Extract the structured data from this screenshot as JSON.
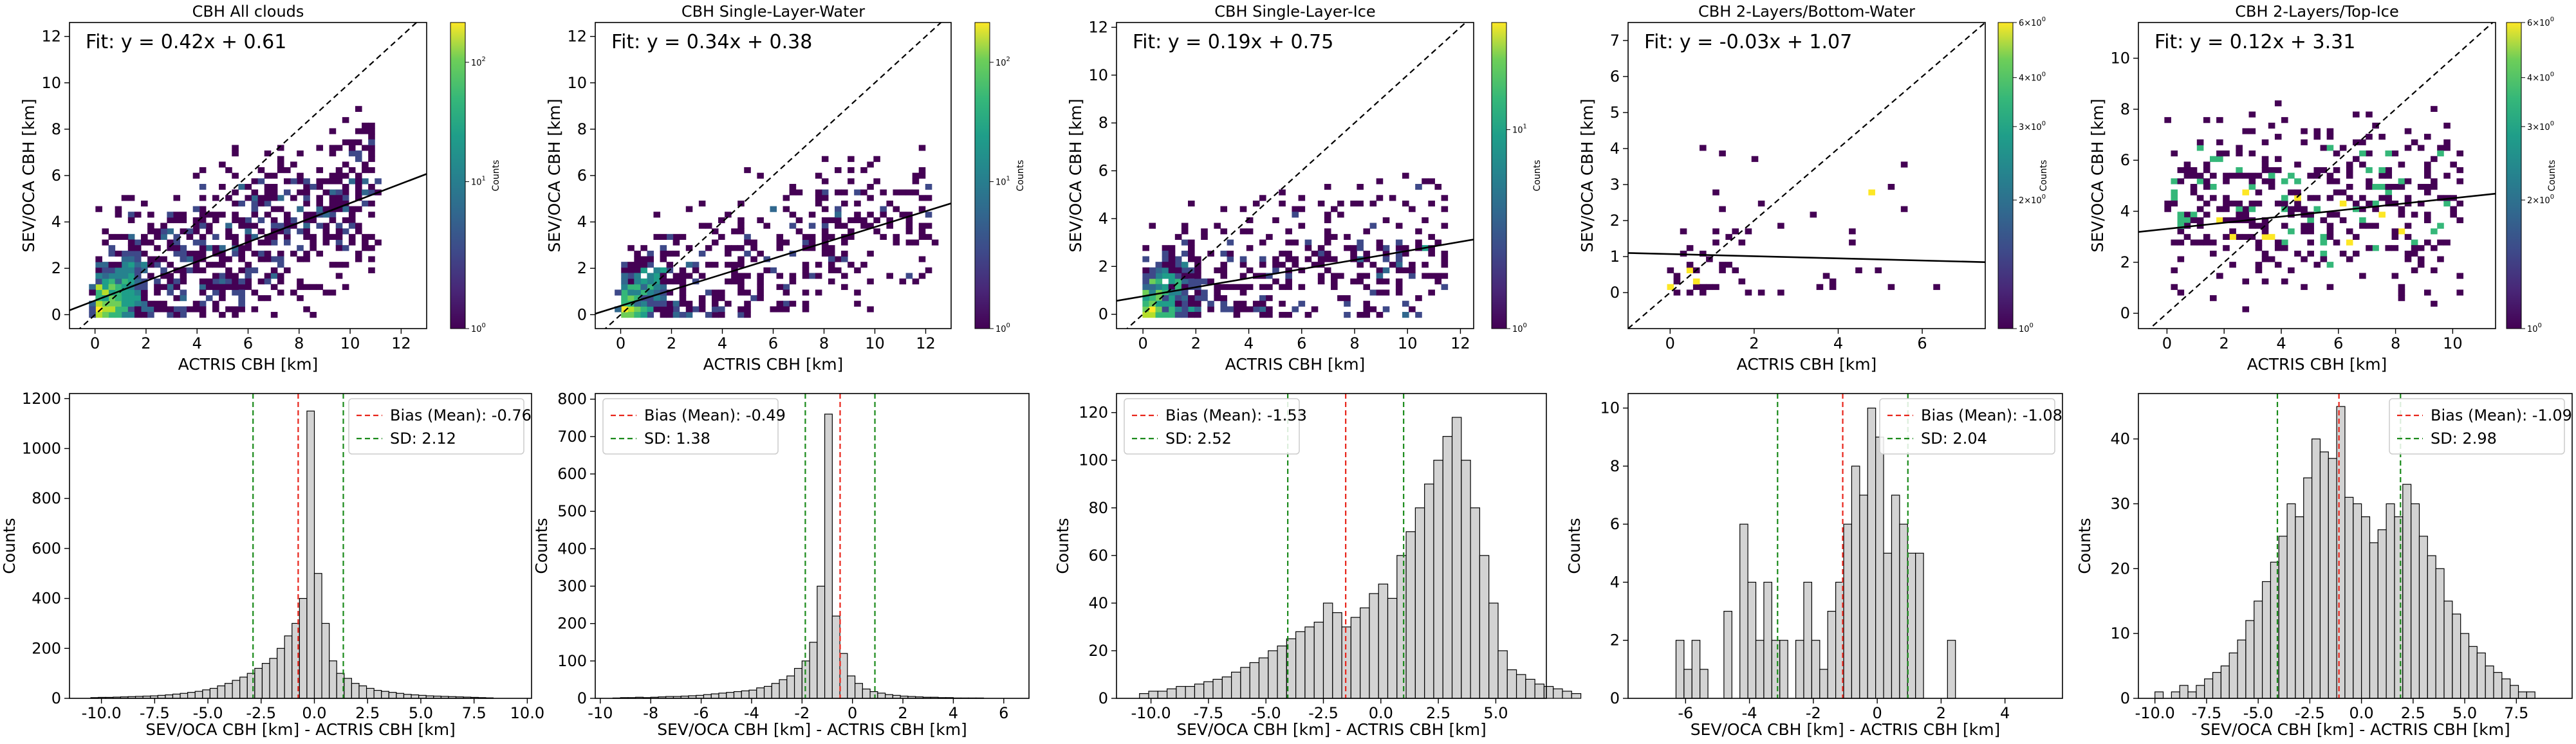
{
  "chart_data": [
    {
      "type": "heatmap",
      "title": "CBH All clouds",
      "xlabel": "ACTRIS CBH [km]",
      "ylabel": "SEV/OCA CBH [km]",
      "xlim": [
        -1,
        13
      ],
      "ylim": [
        -0.6,
        12.6
      ],
      "xticks": [
        "0",
        "2",
        "4",
        "6",
        "8",
        "10",
        "12"
      ],
      "yticks": [
        "0",
        "2",
        "4",
        "6",
        "8",
        "10",
        "12"
      ],
      "fit_text": "Fit: y = 0.42x + 0.61",
      "fit": {
        "slope": 0.42,
        "intercept": 0.61
      },
      "colorbar": {
        "label": "Counts",
        "ticks": [
          "10^0",
          "10^1",
          "10^2"
        ],
        "scale": "log"
      }
    },
    {
      "type": "heatmap",
      "title": "CBH Single-Layer-Water",
      "xlabel": "ACTRIS CBH [km]",
      "ylabel": "SEV/OCA CBH [km]",
      "xlim": [
        -1,
        13
      ],
      "ylim": [
        -0.6,
        12.6
      ],
      "xticks": [
        "0",
        "2",
        "4",
        "6",
        "8",
        "10",
        "12"
      ],
      "yticks": [
        "0",
        "2",
        "4",
        "6",
        "8",
        "10",
        "12"
      ],
      "fit_text": "Fit: y = 0.34x + 0.38",
      "fit": {
        "slope": 0.34,
        "intercept": 0.38
      },
      "colorbar": {
        "label": "Counts",
        "ticks": [
          "10^0",
          "10^1",
          "10^2"
        ],
        "scale": "log"
      }
    },
    {
      "type": "heatmap",
      "title": "CBH Single-Layer-Ice",
      "xlabel": "ACTRIS CBH [km]",
      "ylabel": "SEV/OCA CBH [km]",
      "xlim": [
        -1,
        12.5
      ],
      "ylim": [
        -0.6,
        12.2
      ],
      "xticks": [
        "0",
        "2",
        "4",
        "6",
        "8",
        "10",
        "12"
      ],
      "yticks": [
        "0",
        "2",
        "4",
        "6",
        "8",
        "10",
        "12"
      ],
      "fit_text": "Fit: y = 0.19x + 0.75",
      "fit": {
        "slope": 0.19,
        "intercept": 0.75
      },
      "colorbar": {
        "label": "Counts",
        "ticks": [
          "10^0",
          "10^1"
        ],
        "scale": "log"
      }
    },
    {
      "type": "heatmap",
      "title": "CBH 2-Layers/Bottom-Water",
      "xlabel": "ACTRIS CBH [km]",
      "ylabel": "SEV/OCA CBH [km]",
      "xlim": [
        -1,
        7.5
      ],
      "ylim": [
        -1,
        7.5
      ],
      "xticks": [
        "0",
        "2",
        "4",
        "6"
      ],
      "yticks": [
        "0",
        "1",
        "2",
        "3",
        "4",
        "5",
        "6",
        "7"
      ],
      "fit_text": "Fit: y = -0.03x + 1.07",
      "fit": {
        "slope": -0.03,
        "intercept": 1.07
      },
      "colorbar": {
        "label": "Counts",
        "ticks": [
          "10^0",
          "2×10^0",
          "3×10^0",
          "4×10^0",
          "6×10^0"
        ],
        "scale": "log"
      }
    },
    {
      "type": "heatmap",
      "title": "CBH 2-Layers/Top-Ice",
      "xlabel": "ACTRIS CBH [km]",
      "ylabel": "SEV/OCA CBH [km]",
      "xlim": [
        -1,
        11.5
      ],
      "ylim": [
        -0.6,
        11.4
      ],
      "xticks": [
        "0",
        "2",
        "4",
        "6",
        "8",
        "10"
      ],
      "yticks": [
        "0",
        "2",
        "4",
        "6",
        "8",
        "10"
      ],
      "fit_text": "Fit: y = 0.12x + 3.31",
      "fit": {
        "slope": 0.12,
        "intercept": 3.31
      },
      "colorbar": {
        "label": "Counts",
        "ticks": [
          "10^0",
          "2×10^0",
          "3×10^0",
          "4×10^0",
          "6×10^0"
        ],
        "scale": "log"
      }
    },
    {
      "type": "bar",
      "xlabel": "SEV/OCA CBH [km] - ACTRIS CBH [km]",
      "ylabel": "Counts",
      "xlim": [
        -11.5,
        10.2
      ],
      "ylim": [
        0,
        1220
      ],
      "xticks": [
        "-10.0",
        "-7.5",
        "-5.0",
        "-2.5",
        "0.0",
        "2.5",
        "5.0",
        "7.5",
        "10.0"
      ],
      "yticks": [
        "0",
        "200",
        "400",
        "600",
        "800",
        "1000",
        "1200"
      ],
      "bias_label": "Bias (Mean): -0.76",
      "sd_label": "SD: 2.12",
      "bias": -0.76,
      "sd": 2.12,
      "legend_position": "upper right",
      "bin_start": -10.5,
      "bin_width": 0.35,
      "values": [
        3,
        4,
        4,
        5,
        6,
        7,
        8,
        9,
        10,
        12,
        14,
        17,
        20,
        24,
        28,
        34,
        40,
        50,
        60,
        72,
        85,
        100,
        120,
        140,
        160,
        200,
        250,
        300,
        400,
        1150,
        500,
        300,
        150,
        100,
        80,
        60,
        50,
        40,
        32,
        28,
        24,
        20,
        16,
        14,
        12,
        10,
        9,
        8,
        7,
        6,
        5,
        4,
        3,
        2
      ]
    },
    {
      "type": "bar",
      "xlabel": "SEV/OCA CBH [km] - ACTRIS CBH [km]",
      "ylabel": "Counts",
      "xlim": [
        -10.2,
        7
      ],
      "ylim": [
        0,
        815
      ],
      "xticks": [
        "-10",
        "-8",
        "-6",
        "-4",
        "-2",
        "0",
        "2",
        "4",
        "6"
      ],
      "yticks": [
        "0",
        "100",
        "200",
        "300",
        "400",
        "500",
        "600",
        "700",
        "800"
      ],
      "bias_label": "Bias (Mean): -0.49",
      "sd_label": "SD: 1.38",
      "bias": -0.49,
      "sd": 1.38,
      "legend_position": "upper left",
      "bin_start": -9.5,
      "bin_width": 0.3,
      "values": [
        1,
        2,
        2,
        3,
        2,
        3,
        4,
        5,
        5,
        6,
        7,
        8,
        10,
        12,
        14,
        16,
        18,
        20,
        22,
        28,
        32,
        40,
        50,
        60,
        80,
        100,
        150,
        300,
        760,
        220,
        120,
        60,
        40,
        25,
        18,
        14,
        10,
        8,
        6,
        5,
        4,
        3,
        3,
        2,
        2,
        1,
        1,
        1,
        1
      ]
    },
    {
      "type": "bar",
      "xlabel": "SEV/OCA CBH [km] - ACTRIS CBH [km]",
      "ylabel": "Counts",
      "xlim": [
        -11.5,
        7.2
      ],
      "ylim": [
        0,
        128
      ],
      "xticks": [
        "-10.0",
        "-7.5",
        "-5.0",
        "-2.5",
        "0.0",
        "2.5",
        "5.0"
      ],
      "yticks": [
        "0",
        "20",
        "40",
        "60",
        "80",
        "100",
        "120"
      ],
      "bias_label": "Bias (Mean): -1.53",
      "sd_label": "SD: 2.52",
      "bias": -1.53,
      "sd": 2.52,
      "legend_position": "upper left",
      "bin_start": -10.5,
      "bin_width": 0.4,
      "values": [
        2,
        3,
        3,
        4,
        5,
        5,
        6,
        7,
        8,
        9,
        11,
        13,
        15,
        17,
        20,
        22,
        25,
        28,
        30,
        32,
        40,
        36,
        30,
        34,
        38,
        44,
        48,
        42,
        60,
        70,
        80,
        90,
        100,
        110,
        118,
        100,
        80,
        60,
        40,
        20,
        12,
        10,
        8,
        6,
        5,
        4,
        3,
        2
      ]
    },
    {
      "type": "bar",
      "xlabel": "SEV/OCA CBH [km] - ACTRIS CBH [km]",
      "ylabel": "Counts",
      "xlim": [
        -7.8,
        5.8
      ],
      "ylim": [
        0,
        10.5
      ],
      "xticks": [
        "-6",
        "-4",
        "-2",
        "0",
        "2",
        "4"
      ],
      "yticks": [
        "0",
        "2",
        "4",
        "6",
        "8",
        "10"
      ],
      "bias_label": "Bias (Mean): -1.08",
      "sd_label": "SD: 2.04",
      "bias": -1.08,
      "sd": 2.04,
      "legend_position": "upper right",
      "bin_start": -6.3,
      "bin_width": 0.25,
      "values": [
        2,
        1,
        2,
        1,
        0,
        0,
        3,
        0,
        6,
        4,
        2,
        4,
        2,
        2,
        0,
        2,
        4,
        2,
        1,
        3,
        4,
        6,
        8,
        7,
        10,
        9,
        5,
        7,
        6,
        5,
        5,
        0,
        0,
        0,
        2,
        0,
        0,
        0,
        0,
        0,
        0,
        0,
        0,
        0,
        0,
        0,
        0
      ]
    },
    {
      "type": "bar",
      "xlabel": "SEV/OCA CBH [km] - ACTRIS CBH [km]",
      "ylabel": "Counts",
      "xlim": [
        -10.8,
        10.2
      ],
      "ylim": [
        0,
        47
      ],
      "xticks": [
        "-10.0",
        "-7.5",
        "-5.0",
        "-2.5",
        "0.0",
        "2.5",
        "5.0",
        "7.5"
      ],
      "yticks": [
        "0",
        "10",
        "20",
        "30",
        "40"
      ],
      "bias_label": "Bias (Mean): -1.09",
      "sd_label": "SD: 2.98",
      "bias": -1.09,
      "sd": 2.98,
      "legend_position": "upper right",
      "bin_start": -10.0,
      "bin_width": 0.4,
      "values": [
        1,
        0,
        1,
        2,
        1,
        2,
        3,
        4,
        5,
        7,
        9,
        12,
        15,
        18,
        21,
        25,
        30,
        28,
        34,
        40,
        38,
        37,
        45,
        31,
        30,
        28,
        24,
        26,
        30,
        28,
        33,
        30,
        25,
        22,
        20,
        15,
        13,
        10,
        8,
        7,
        5,
        4,
        3,
        2,
        1,
        1
      ]
    }
  ]
}
